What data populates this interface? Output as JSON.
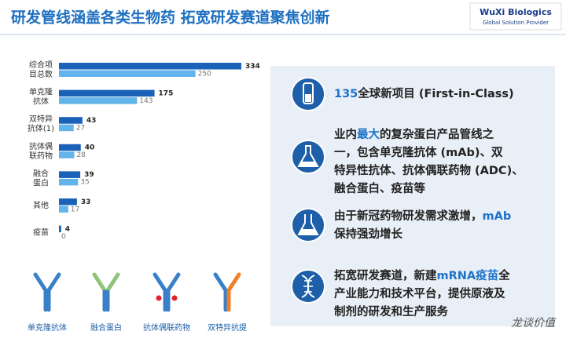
{
  "header": {
    "title": "研发管线涵盖各类生物药  拓宽研发赛道聚焦创新",
    "logo": "WuXi Biologics",
    "logo_sub": "Global Solution Provider"
  },
  "chart_data": {
    "type": "bar",
    "orientation": "horizontal",
    "categories": [
      [
        "综合项",
        "目总数"
      ],
      [
        "单克隆",
        "抗体"
      ],
      [
        "双特异",
        "抗体(1)"
      ],
      [
        "抗体偶",
        "联药物"
      ],
      [
        "融合",
        "蛋白"
      ],
      [
        "其他"
      ],
      [
        "疫苗"
      ]
    ],
    "series": [
      {
        "color": "#1a62b8",
        "values": [
          334,
          175,
          43,
          40,
          39,
          33,
          4
        ]
      },
      {
        "color": "#62b4ea",
        "values": [
          250,
          143,
          27,
          28,
          35,
          17,
          0
        ]
      }
    ]
  },
  "highlights": [
    {
      "lines": [
        [
          {
            "text": "135",
            "highlight": true
          },
          {
            "text": "全球新项目 (First-in-Class)"
          }
        ]
      ]
    },
    {
      "lines": [
        [
          {
            "text": "业内"
          },
          {
            "text": "最大",
            "highlight": true
          },
          {
            "text": "的复杂蛋白产品管线之"
          }
        ],
        [
          {
            "text": "一，包含单克隆抗体 (mAb)、双"
          }
        ],
        [
          {
            "text": "特异性抗体、抗体偶联药物 (ADC)、"
          }
        ],
        [
          {
            "text": "融合蛋白、疫苗等"
          }
        ]
      ]
    },
    {
      "lines": [
        [
          {
            "text": "由于新冠药物研发需求激增，"
          },
          {
            "text": "mAb",
            "highlight": true
          }
        ],
        [
          {
            "text": "保持强劲增长"
          }
        ]
      ]
    },
    {
      "lines": [
        [
          {
            "text": "拓宽研发赛道，新建"
          },
          {
            "text": "mRNA疫苗",
            "highlight": true
          },
          {
            "text": "全"
          }
        ],
        [
          {
            "text": "产业能力和技术平台，提供原液及"
          }
        ],
        [
          {
            "text": "制剂的研发和生产服务"
          }
        ]
      ]
    }
  ],
  "antibody_types": [
    "单克隆抗体",
    "融合蛋白",
    "抗体偶联药物",
    "双特异抗提"
  ],
  "watermark": "龙谈价值"
}
